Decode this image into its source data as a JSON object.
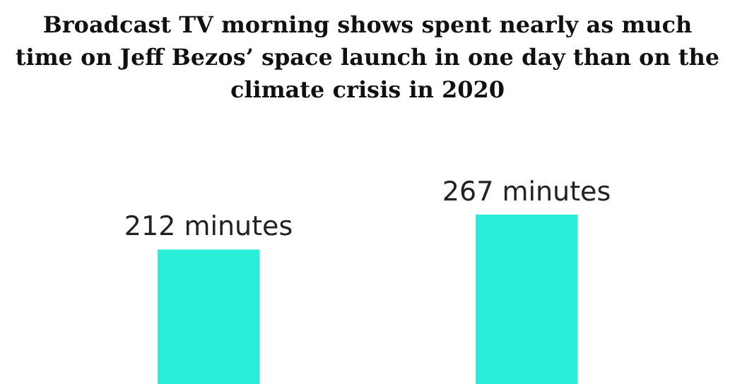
{
  "chart_data": {
    "type": "bar",
    "title": "Broadcast TV morning shows spent nearly as much time on Jeff Bezos’ space launch in one day than on the climate crisis in 2020",
    "categories": [
      null,
      null
    ],
    "values": [
      212,
      267
    ],
    "color": "#2aeed8",
    "value_labels": [
      "212 minutes",
      "267 minutes"
    ]
  }
}
